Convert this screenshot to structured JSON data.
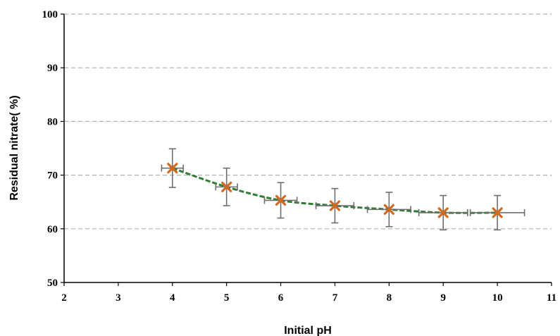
{
  "chart_data": {
    "type": "scatter",
    "title": "",
    "xlabel": "Initial pH",
    "ylabel": "Residual nitrate( %)",
    "xlim": [
      2,
      11
    ],
    "ylim": [
      50,
      100
    ],
    "x_ticks": [
      "2",
      "3",
      "4",
      "5",
      "6",
      "7",
      "8",
      "9",
      "10",
      "11"
    ],
    "y_ticks": [
      "50",
      "60",
      "70",
      "80",
      "90",
      "100"
    ],
    "grid": "horizontal dashed",
    "legend": "none",
    "series": [
      {
        "x": [
          4,
          5,
          6,
          7,
          8,
          9,
          10
        ],
        "y": [
          71.3,
          67.8,
          65.3,
          64.3,
          63.6,
          63.0,
          63.0
        ],
        "y_error": [
          3.6,
          3.5,
          3.3,
          3.2,
          3.2,
          3.2,
          3.2
        ],
        "x_error": [
          0.2,
          0.2,
          0.3,
          0.35,
          0.4,
          0.45,
          0.5
        ],
        "marker": "x",
        "marker_color": "#d2691e",
        "trendline": "dashed",
        "trendline_color": "#2e7d32"
      }
    ]
  }
}
